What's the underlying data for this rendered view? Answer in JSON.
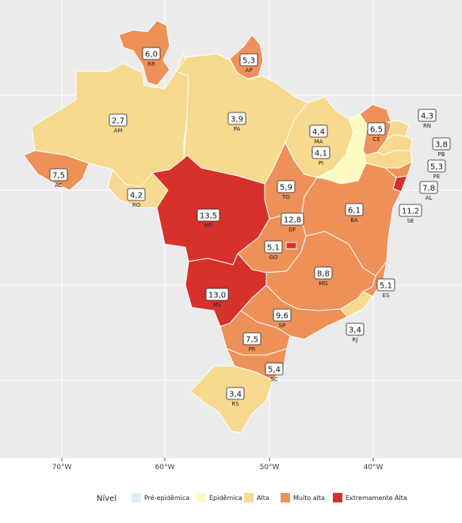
{
  "colors": {
    "panel_bg": "#ebebeb",
    "grid": "#ffffff",
    "border": "#ffffff"
  },
  "levels": [
    {
      "key": "pre",
      "label": "Pré-epidêmica",
      "color": "#d9f0fb"
    },
    {
      "key": "epi",
      "label": "Epidêmica",
      "color": "#fdfbc2"
    },
    {
      "key": "alta",
      "label": "Alta",
      "color": "#f7da8f"
    },
    {
      "key": "muito",
      "label": "Muito alta",
      "color": "#ee9158"
    },
    {
      "key": "extrema",
      "label": "Extremamente Alta",
      "color": "#d6312a"
    }
  ],
  "legend_title": "Nível",
  "x_ticks": [
    "70°W",
    "60°W",
    "50°W",
    "40°W"
  ],
  "states": [
    {
      "abbr": "RR",
      "value": "6,0",
      "level": "muito"
    },
    {
      "abbr": "AP",
      "value": "5,3",
      "level": "muito"
    },
    {
      "abbr": "AM",
      "value": "2,7",
      "level": "alta"
    },
    {
      "abbr": "PA",
      "value": "3,9",
      "level": "alta"
    },
    {
      "abbr": "MA",
      "value": "4,4",
      "level": "alta"
    },
    {
      "abbr": "CE",
      "value": "6,5",
      "level": "muito"
    },
    {
      "abbr": "RN",
      "value": "4,3",
      "level": "alta"
    },
    {
      "abbr": "PB",
      "value": "3,8",
      "level": "alta"
    },
    {
      "abbr": "PE",
      "value": "5,3",
      "level": "alta"
    },
    {
      "abbr": "AL",
      "value": "7,8",
      "level": "muito"
    },
    {
      "abbr": "SE",
      "value": "11,2",
      "level": "extrema"
    },
    {
      "abbr": "PI",
      "value": "4,1",
      "level": "epi"
    },
    {
      "abbr": "AC",
      "value": "7,5",
      "level": "muito"
    },
    {
      "abbr": "RO",
      "value": "4,2",
      "level": "alta"
    },
    {
      "abbr": "TO",
      "value": "5,9",
      "level": "muito"
    },
    {
      "abbr": "BA",
      "value": "6,1",
      "level": "muito"
    },
    {
      "abbr": "MT",
      "value": "13,5",
      "level": "extrema"
    },
    {
      "abbr": "DF",
      "value": "12,8",
      "level": "extrema"
    },
    {
      "abbr": "GO",
      "value": "5,1",
      "level": "muito"
    },
    {
      "abbr": "MG",
      "value": "8,8",
      "level": "muito"
    },
    {
      "abbr": "ES",
      "value": "5,1",
      "level": "muito"
    },
    {
      "abbr": "MS",
      "value": "13,0",
      "level": "extrema"
    },
    {
      "abbr": "SP",
      "value": "9,6",
      "level": "muito"
    },
    {
      "abbr": "RJ",
      "value": "3,4",
      "level": "alta"
    },
    {
      "abbr": "PR",
      "value": "7,5",
      "level": "muito"
    },
    {
      "abbr": "SC",
      "value": "5,4",
      "level": "muito"
    },
    {
      "abbr": "RS",
      "value": "3,4",
      "level": "alta"
    }
  ]
}
